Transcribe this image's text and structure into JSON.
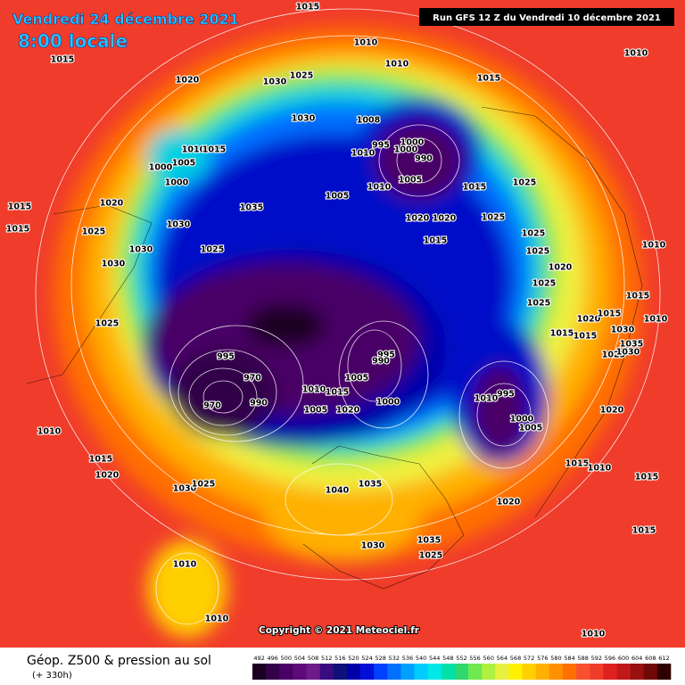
{
  "header": {
    "date": "Vendredi 24 décembre 2021",
    "time": "8:00 locale",
    "run": "Run GFS 12 Z du Vendredi 10 décembre 2021"
  },
  "copyright": "Copyright © 2021 Meteociel.fr",
  "footer": {
    "title": "Géop. Z500 & pression au sol",
    "subtitle": "(+ 330h)"
  },
  "legend": {
    "values": [
      492,
      496,
      500,
      504,
      508,
      512,
      516,
      520,
      524,
      528,
      532,
      536,
      540,
      544,
      548,
      552,
      556,
      560,
      564,
      568,
      572,
      576,
      580,
      584,
      588,
      592,
      596,
      600,
      604,
      608,
      612
    ],
    "colors": [
      "#1c0024",
      "#33004a",
      "#4a0066",
      "#5e0a7a",
      "#6e1a8a",
      "#3a0a80",
      "#10107a",
      "#0000a8",
      "#0010d8",
      "#0040ff",
      "#0070ff",
      "#00a0ff",
      "#00ccff",
      "#00e8e8",
      "#00e0a8",
      "#30d870",
      "#70e850",
      "#b0f040",
      "#e8f040",
      "#fff000",
      "#ffd000",
      "#ffb000",
      "#ff9000",
      "#ff7000",
      "#f85030",
      "#f03c2a",
      "#e02020",
      "#c01818",
      "#981010",
      "#700808",
      "#300000"
    ]
  },
  "pressure_labels": [
    "1015",
    "1010",
    "1010",
    "1015",
    "1020",
    "1030",
    "1025",
    "1010",
    "1015",
    "1030",
    "1008",
    "995",
    "1000",
    "1010",
    "1000",
    "990",
    "1005",
    "1010",
    "1015",
    "1025",
    "1010",
    "1015",
    "1005",
    "1000",
    "1000",
    "1035",
    "1020",
    "1015",
    "1005",
    "1020",
    "1020",
    "1025",
    "1015",
    "1025",
    "1030",
    "1015",
    "1025",
    "1030",
    "1025",
    "1025",
    "1010",
    "1030",
    "1020",
    "1025",
    "1015",
    "1025",
    "1025",
    "1020",
    "1015",
    "1010",
    "1030",
    "1015",
    "1015",
    "1035",
    "1025",
    "1030",
    "995",
    "995",
    "990",
    "970",
    "1005",
    "1010",
    "1015",
    "1000",
    "995",
    "1010",
    "970",
    "990",
    "1005",
    "1020",
    "1000",
    "1005",
    "1020",
    "1010",
    "1015",
    "1015",
    "1010",
    "1015",
    "1020",
    "1030",
    "1025",
    "1040",
    "1035",
    "1020",
    "1015",
    "1030",
    "1035",
    "1025",
    "1010",
    "1010",
    "1010"
  ]
}
